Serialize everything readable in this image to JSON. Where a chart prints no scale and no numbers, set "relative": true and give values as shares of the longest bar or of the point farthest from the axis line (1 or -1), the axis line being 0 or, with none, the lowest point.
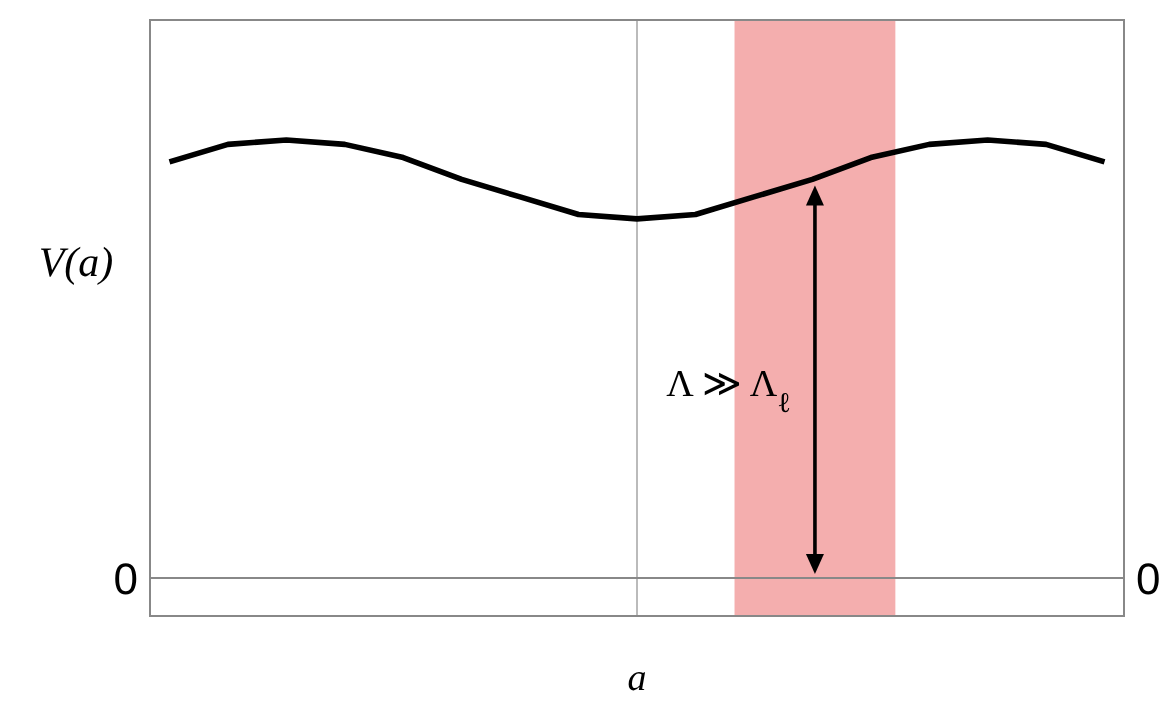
{
  "chart_data": {
    "type": "line",
    "relative": true,
    "xlabel": "a",
    "ylabel": "V(a)",
    "categories": [
      null,
      null,
      null,
      null,
      null,
      null,
      null,
      null,
      null,
      null,
      null,
      null,
      null,
      null,
      null,
      null,
      null
    ],
    "series": [
      {
        "color": "#000000",
        "values": [
          0.95,
          0.99,
          1.0,
          0.99,
          0.96,
          0.91,
          0.87,
          0.83,
          0.82,
          0.83,
          0.87,
          0.91,
          0.96,
          0.99,
          1.0,
          0.99,
          0.95
        ]
      }
    ],
    "ref_lines": [
      {
        "axis": "y",
        "value": 0,
        "label": "0"
      }
    ],
    "annotations": [
      "Λ ≫ Λ$_{ℓ}$"
    ],
    "marker": "none",
    "line_style": "solid"
  }
}
